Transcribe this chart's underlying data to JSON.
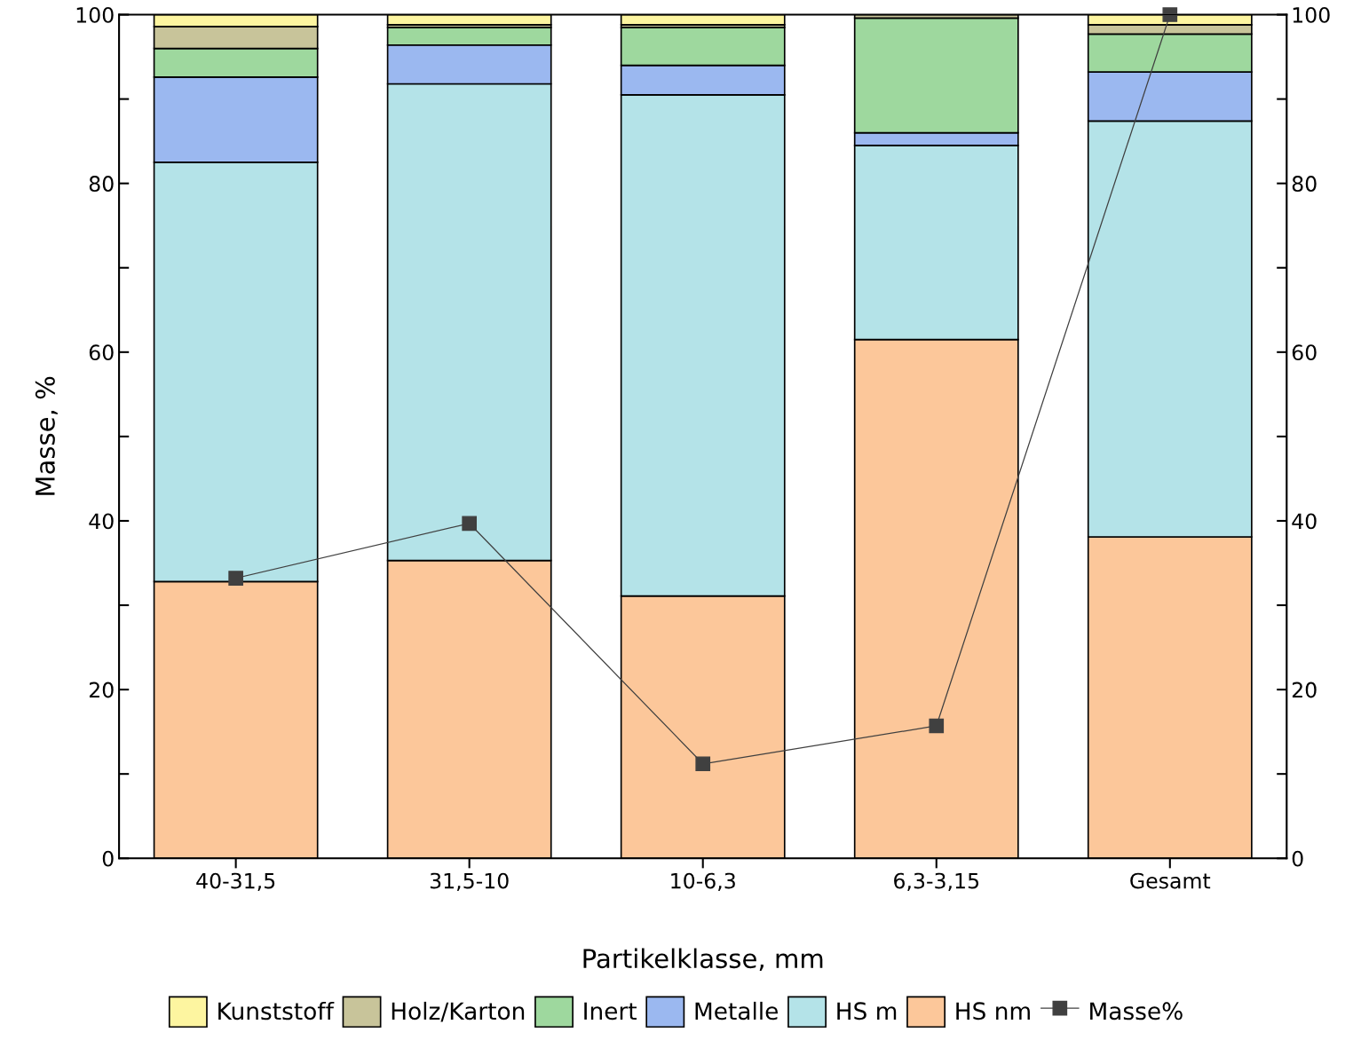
{
  "chart_data": {
    "type": "bar",
    "stacked": true,
    "xlabel": "Partikelklasse, mm",
    "ylabel": "Masse, %",
    "categories": [
      "40-31,5",
      "31,5-10",
      "10-6,3",
      "6,3-3,15",
      "Gesamt"
    ],
    "series": [
      {
        "name": "HS nm",
        "color": "#fcc79a",
        "values": [
          32.8,
          35.3,
          31.1,
          61.5,
          38.1
        ]
      },
      {
        "name": "HS m",
        "color": "#b4e3e8",
        "values": [
          49.7,
          56.5,
          59.4,
          23.0,
          49.3
        ]
      },
      {
        "name": "Metalle",
        "color": "#9bb8f0",
        "values": [
          10.1,
          4.6,
          3.5,
          1.5,
          5.8
        ]
      },
      {
        "name": "Inert",
        "color": "#9ed89e",
        "values": [
          3.4,
          2.1,
          4.5,
          13.6,
          4.5
        ]
      },
      {
        "name": "Holz/Karton",
        "color": "#c8c49a",
        "values": [
          2.6,
          0.3,
          0.3,
          0.4,
          1.1
        ]
      },
      {
        "name": "Kunststoff",
        "color": "#fdf5a0",
        "values": [
          1.4,
          1.2,
          1.2,
          null,
          1.2
        ]
      },
      {
        "name": "Masse%",
        "type": "line",
        "color": "#404040",
        "marker": "square",
        "values": [
          33.2,
          39.7,
          11.2,
          15.7,
          100
        ]
      }
    ],
    "ylim": [
      0,
      100
    ],
    "yticks": [
      0,
      {
        "value": 10,
        "label": null
      },
      20,
      {
        "value": 30,
        "label": null
      },
      40,
      {
        "value": 50,
        "label": null
      },
      60,
      {
        "value": 70,
        "label": null
      },
      80,
      {
        "value": 90,
        "label": null
      },
      100
    ],
    "y2lim": [
      0,
      100
    ],
    "y2ticks": [
      0,
      {
        "value": 10,
        "label": null
      },
      20,
      {
        "value": 30,
        "label": null
      },
      40,
      {
        "value": 50,
        "label": null
      },
      60,
      {
        "value": 70,
        "label": null
      },
      80,
      {
        "value": 90,
        "label": null
      },
      100
    ],
    "grid": false,
    "legend": "bottom"
  }
}
